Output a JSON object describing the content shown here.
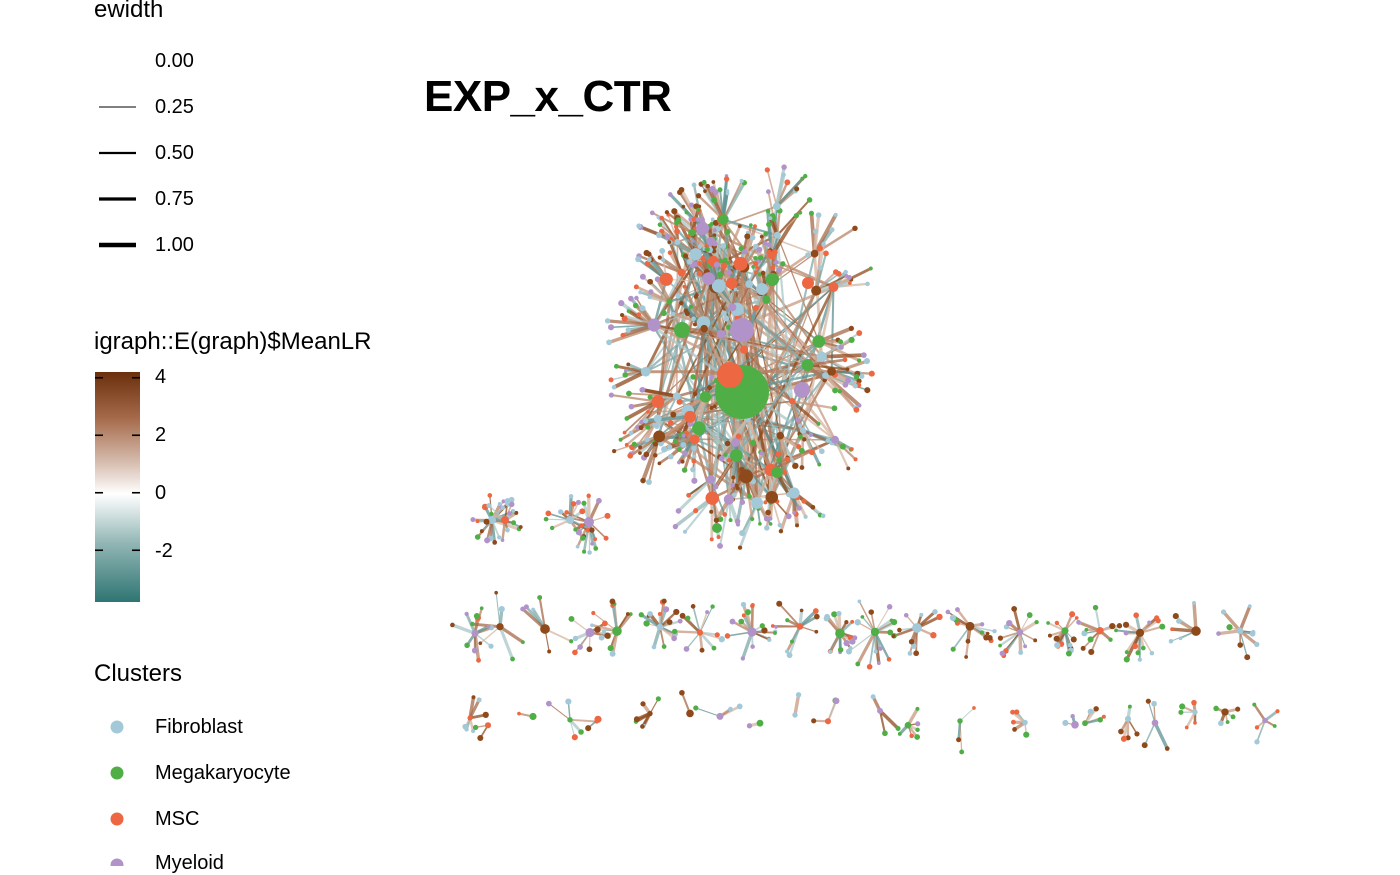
{
  "title": "EXP_x_CTR",
  "legend_ewidth": {
    "title": "ewidth",
    "entries": [
      {
        "label": "0.00",
        "value": 0.0
      },
      {
        "label": "0.25",
        "value": 0.25
      },
      {
        "label": "0.50",
        "value": 0.5
      },
      {
        "label": "0.75",
        "value": 0.75
      },
      {
        "label": "1.00",
        "value": 1.0
      }
    ]
  },
  "legend_meanlr": {
    "title": "igraph::E(graph)$MeanLR",
    "ticks": [
      {
        "label": "4",
        "value": 4
      },
      {
        "label": "2",
        "value": 2
      },
      {
        "label": "0",
        "value": 0
      },
      {
        "label": "-2",
        "value": -2
      }
    ],
    "range": [
      -3.8,
      4.2
    ],
    "colors": {
      "low": "#2e7573",
      "mid": "#ffffff",
      "high": "#6a2f0c"
    }
  },
  "legend_clusters": {
    "title": "Clusters",
    "items": [
      {
        "label": "Fibroblast",
        "color": "#a3c9d9"
      },
      {
        "label": "Megakaryocyte",
        "color": "#4faf46"
      },
      {
        "label": "MSC",
        "color": "#ec6742"
      },
      {
        "label": "Myeloid",
        "color": "#b193c9"
      }
    ]
  },
  "colors": {
    "node_extra": "#8f4a1c"
  }
}
